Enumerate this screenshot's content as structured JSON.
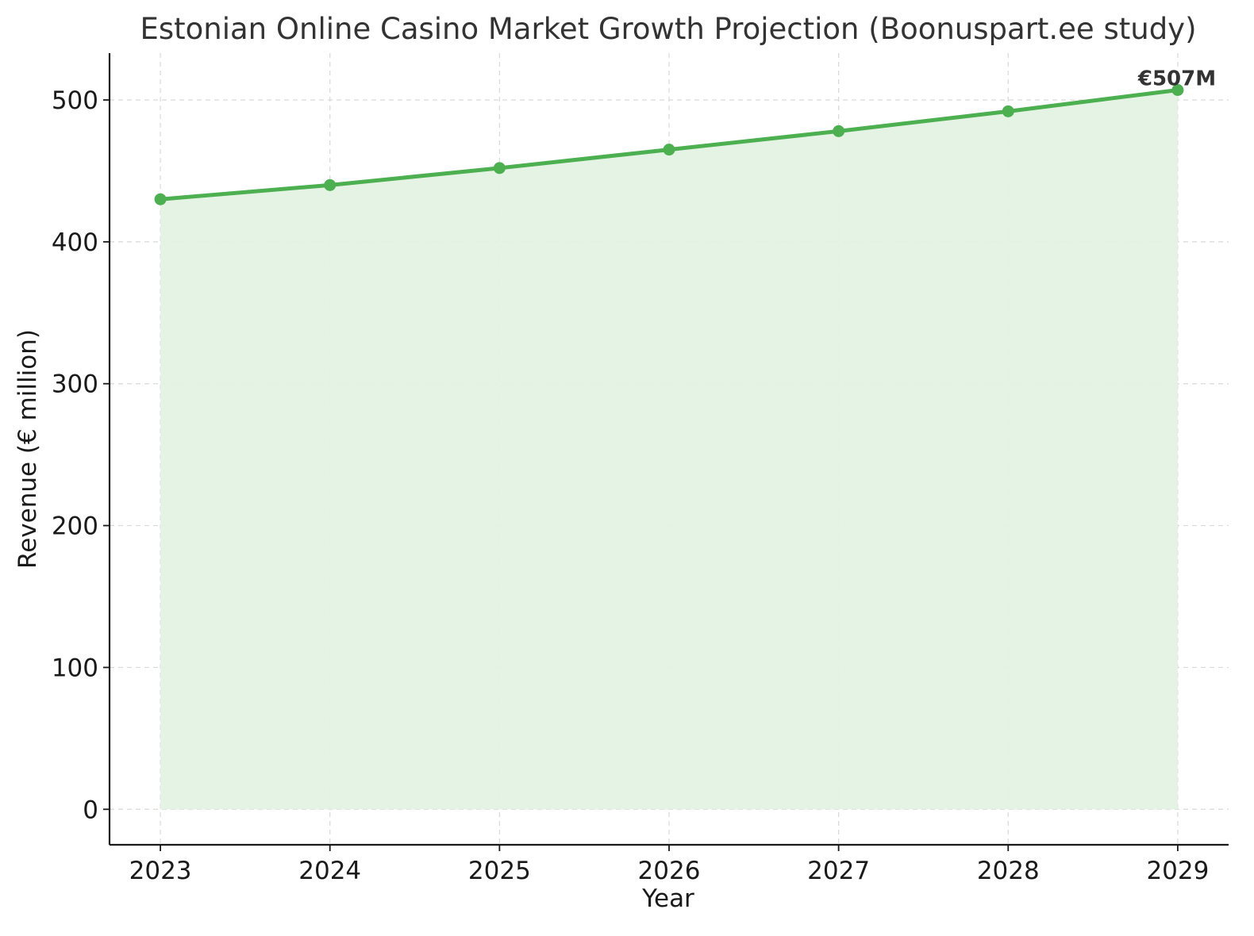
{
  "chart_data": {
    "type": "area",
    "title": "Estonian Online Casino Market Growth Projection (Boonuspart.ee study)",
    "xlabel": "Year",
    "ylabel": "Revenue (€ million)",
    "x": [
      2023,
      2024,
      2025,
      2026,
      2027,
      2028,
      2029
    ],
    "x_tick_labels": [
      "2023",
      "2024",
      "2025",
      "2026",
      "2027",
      "2028",
      "2029"
    ],
    "series": [
      {
        "values": [
          430,
          440,
          452,
          465,
          478,
          492,
          507
        ]
      }
    ],
    "y_ticks": [
      0,
      100,
      200,
      300,
      400,
      500
    ],
    "y_tick_labels": [
      "0",
      "100",
      "200",
      "300",
      "400",
      "500"
    ],
    "ylim": [
      -25,
      533
    ],
    "xlim": [
      2022.7,
      2029.3
    ],
    "grid": true,
    "annotation": {
      "text": "€507M",
      "x": 2029,
      "y": 507
    },
    "colors": {
      "line": "#4caf50",
      "fill": "#e3f2e3",
      "axis": "#1a1a1a"
    }
  }
}
